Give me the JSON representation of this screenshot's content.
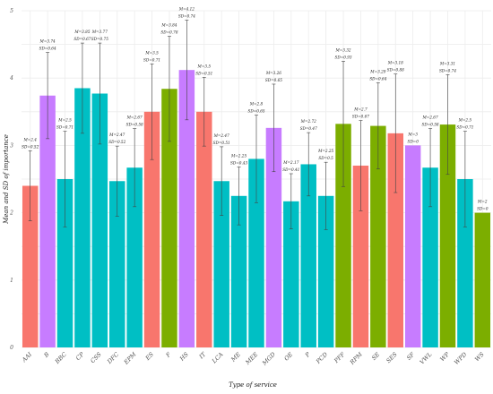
{
  "chart_data": {
    "type": "bar",
    "xlabel": "Type of service",
    "ylabel": "Mean and SD of importance",
    "ylim": [
      0,
      5
    ],
    "y_ticks": [
      0,
      1,
      2,
      3,
      4,
      5
    ],
    "grid": true,
    "legend": "none",
    "colors": {
      "red": "#F8766D",
      "purple": "#C77CFF",
      "teal": "#00BFC4",
      "green": "#7CAE00"
    },
    "bars": [
      {
        "category": "AAI",
        "mean": 2.4,
        "sd": 0.52,
        "mean_label": "M=2.4",
        "sd_label": "SD=0.52",
        "color": "red"
      },
      {
        "category": "B",
        "mean": 3.74,
        "sd": 0.64,
        "mean_label": "M=3.74",
        "sd_label": "SD=0.64",
        "color": "purple"
      },
      {
        "category": "BBC",
        "mean": 2.5,
        "sd": 0.71,
        "mean_label": "M=2.5",
        "sd_label": "SD=0.71",
        "color": "teal"
      },
      {
        "category": "CP",
        "mean": 3.85,
        "sd": 0.67,
        "mean_label": "M=3.85",
        "sd_label": "SD=0.67",
        "color": "teal"
      },
      {
        "category": "CSS",
        "mean": 3.77,
        "sd": 0.75,
        "mean_label": "M=3.77",
        "sd_label": "SD=0.75",
        "color": "teal"
      },
      {
        "category": "DFC",
        "mean": 2.47,
        "sd": 0.52,
        "mean_label": "M=2.47",
        "sd_label": "SD=0.52",
        "color": "teal"
      },
      {
        "category": "EPM",
        "mean": 2.67,
        "sd": 0.58,
        "mean_label": "M=2.67",
        "sd_label": "SD=0.58",
        "color": "teal"
      },
      {
        "category": "ES",
        "mean": 3.5,
        "sd": 0.71,
        "mean_label": "M=3.5",
        "sd_label": "SD=0.71",
        "color": "red"
      },
      {
        "category": "F",
        "mean": 3.84,
        "sd": 0.78,
        "mean_label": "M=3.84",
        "sd_label": "SD=0.78",
        "color": "green"
      },
      {
        "category": "HS",
        "mean": 4.12,
        "sd": 0.74,
        "mean_label": "M=4.12",
        "sd_label": "SD=0.74",
        "color": "purple"
      },
      {
        "category": "IT",
        "mean": 3.5,
        "sd": 0.51,
        "mean_label": "M=3.5",
        "sd_label": "SD=0.51",
        "color": "red"
      },
      {
        "category": "LCA",
        "mean": 2.47,
        "sd": 0.51,
        "mean_label": "M=2.47",
        "sd_label": "SD=0.51",
        "color": "teal"
      },
      {
        "category": "ME",
        "mean": 2.25,
        "sd": 0.43,
        "mean_label": "M=2.25",
        "sd_label": "SD=0.43",
        "color": "teal"
      },
      {
        "category": "MEE",
        "mean": 2.8,
        "sd": 0.65,
        "mean_label": "M=2.8",
        "sd_label": "SD=0.65",
        "color": "teal"
      },
      {
        "category": "MGD",
        "mean": 3.26,
        "sd": 0.65,
        "mean_label": "M=3.26",
        "sd_label": "SD=0.65",
        "color": "purple"
      },
      {
        "category": "OE",
        "mean": 2.17,
        "sd": 0.41,
        "mean_label": "M=2.17",
        "sd_label": "SD=0.41",
        "color": "teal"
      },
      {
        "category": "P",
        "mean": 2.72,
        "sd": 0.47,
        "mean_label": "M=2.72",
        "sd_label": "SD=0.47",
        "color": "teal"
      },
      {
        "category": "PCD",
        "mean": 2.25,
        "sd": 0.5,
        "mean_label": "M=2.25",
        "sd_label": "SD=0.5",
        "color": "teal"
      },
      {
        "category": "PFF",
        "mean": 3.32,
        "sd": 0.93,
        "mean_label": "M=3.32",
        "sd_label": "SD=0.93",
        "color": "green"
      },
      {
        "category": "RPM",
        "mean": 2.7,
        "sd": 0.67,
        "mean_label": "M=2.7",
        "sd_label": "SD=0.67",
        "color": "red"
      },
      {
        "category": "SE",
        "mean": 3.29,
        "sd": 0.64,
        "mean_label": "M=3.29",
        "sd_label": "SD=0.64",
        "color": "green"
      },
      {
        "category": "SES",
        "mean": 3.18,
        "sd": 0.88,
        "mean_label": "M=3.18",
        "sd_label": "SD=0.88",
        "color": "red"
      },
      {
        "category": "SF",
        "mean": 3.0,
        "sd": 0.0,
        "mean_label": "M=3",
        "sd_label": "SD=0",
        "color": "purple"
      },
      {
        "category": "VWL",
        "mean": 2.67,
        "sd": 0.58,
        "mean_label": "M=2.67",
        "sd_label": "SD=0.58",
        "color": "teal"
      },
      {
        "category": "WP",
        "mean": 3.31,
        "sd": 0.74,
        "mean_label": "M=3.31",
        "sd_label": "SD=0.74",
        "color": "green"
      },
      {
        "category": "WPD",
        "mean": 2.5,
        "sd": 0.71,
        "mean_label": "M=2.5",
        "sd_label": "SD=0.71",
        "color": "teal"
      },
      {
        "category": "WS",
        "mean": 2.0,
        "sd": 0.0,
        "mean_label": "M=2",
        "sd_label": "SD=0",
        "color": "green"
      }
    ]
  }
}
